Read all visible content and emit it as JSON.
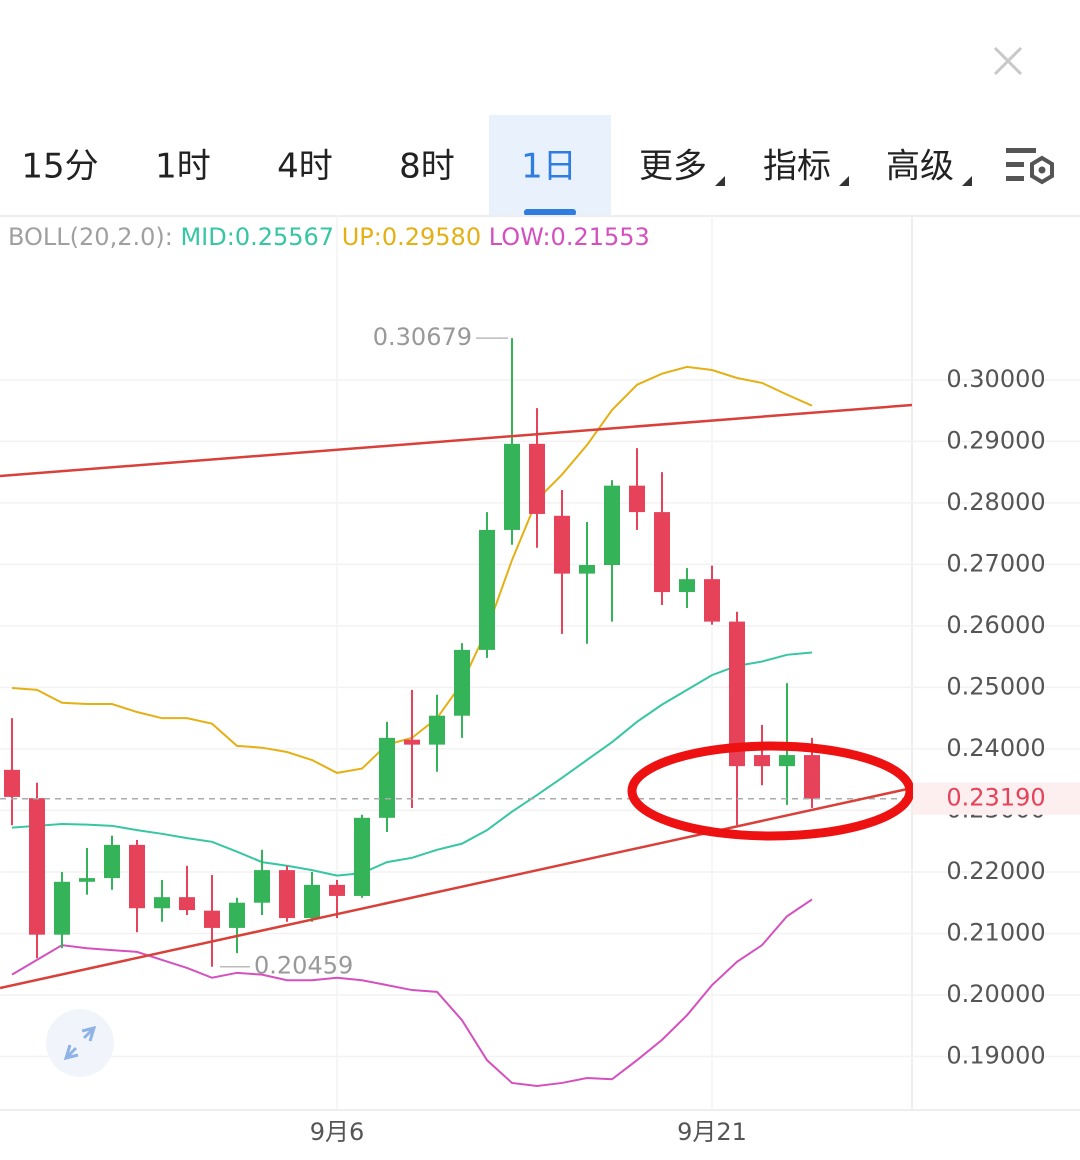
{
  "tabs": {
    "items": [
      "15分",
      "1时",
      "4时",
      "8时",
      "1日",
      "更多",
      "指标",
      "高级"
    ],
    "active": 4
  },
  "chart_data": {
    "type": "candlestick",
    "indicator_legend": {
      "title": "BOLL(20,2.0):",
      "items": [
        "MID:0.25567",
        "UP:0.29580",
        "LOW:0.21553"
      ],
      "colors": [
        "#36c6a4",
        "#e4b014",
        "#d550bf"
      ]
    },
    "categories": [
      null,
      null,
      null,
      null,
      null,
      null,
      null,
      null,
      null,
      null,
      null,
      null,
      null,
      "9月6",
      null,
      null,
      null,
      null,
      null,
      null,
      null,
      null,
      null,
      null,
      null,
      null,
      null,
      null,
      "9月21",
      null,
      null,
      null,
      null
    ],
    "open": [
      0.2366,
      0.232,
      0.2098,
      0.2184,
      0.219,
      0.2244,
      0.2141,
      0.2159,
      0.2137,
      0.2109,
      0.215,
      0.2203,
      0.2125,
      0.2179,
      0.2161,
      0.2288,
      0.2415,
      0.2407,
      0.2454,
      0.2561,
      0.2756,
      0.2896,
      0.2779,
      0.2685,
      0.2699,
      0.2828,
      0.2785,
      0.2655,
      0.2676,
      0.2607,
      0.239,
      0.2372,
      0.239
    ],
    "high": [
      0.245,
      0.2345,
      0.22,
      0.2239,
      0.2259,
      0.2252,
      0.2187,
      0.221,
      0.2195,
      0.2158,
      0.2236,
      0.221,
      0.22,
      0.2187,
      0.2293,
      0.2444,
      0.2496,
      0.2488,
      0.2572,
      0.2785,
      0.30679,
      0.2954,
      0.2821,
      0.2769,
      0.2837,
      0.2889,
      0.285,
      0.2694,
      0.2698,
      0.2623,
      0.2439,
      0.2507,
      0.2418
    ],
    "low": [
      0.2276,
      0.206,
      0.2076,
      0.2163,
      0.2171,
      0.2102,
      0.2119,
      0.213,
      0.20459,
      0.2068,
      0.213,
      0.2119,
      0.2119,
      0.2125,
      0.2158,
      0.2265,
      0.2304,
      0.2363,
      0.2418,
      0.2548,
      0.2732,
      0.2727,
      0.2587,
      0.2571,
      0.2607,
      0.2756,
      0.2634,
      0.2629,
      0.2602,
      0.2276,
      0.2341,
      0.2309,
      0.2304
    ],
    "close": [
      0.2322,
      0.2098,
      0.2184,
      0.219,
      0.2244,
      0.2141,
      0.2159,
      0.2138,
      0.2109,
      0.215,
      0.2203,
      0.2125,
      0.2179,
      0.2161,
      0.2288,
      0.2418,
      0.2407,
      0.2454,
      0.2561,
      0.2756,
      0.2896,
      0.2782,
      0.2685,
      0.2699,
      0.2828,
      0.2785,
      0.2655,
      0.2676,
      0.2607,
      0.2372,
      0.2372,
      0.239,
      0.2319
    ],
    "up_color": "#35b359",
    "down_color": "#e6435b",
    "overlays": [
      {
        "color": "#36c6a4",
        "values": [
          0.2272,
          0.2275,
          0.2278,
          0.2277,
          0.2275,
          0.2268,
          0.2262,
          0.2255,
          0.2249,
          0.2233,
          0.2216,
          0.221,
          0.2203,
          0.2194,
          0.2198,
          0.2216,
          0.2223,
          0.2236,
          0.2246,
          0.2268,
          0.2298,
          0.2325,
          0.2353,
          0.2382,
          0.2411,
          0.2444,
          0.2472,
          0.2496,
          0.252,
          0.2535,
          0.2542,
          0.2553,
          0.25567
        ]
      },
      {
        "color": "#e4b014",
        "values": [
          0.2499,
          0.2496,
          0.2475,
          0.2473,
          0.2473,
          0.246,
          0.245,
          0.245,
          0.2441,
          0.2405,
          0.2402,
          0.2395,
          0.2382,
          0.2361,
          0.2368,
          0.2407,
          0.2418,
          0.245,
          0.2507,
          0.2594,
          0.2707,
          0.2805,
          0.2846,
          0.2894,
          0.2951,
          0.2992,
          0.301,
          0.3021,
          0.3016,
          0.3003,
          0.2995,
          0.2976,
          0.2958
        ]
      },
      {
        "color": "#d550bf",
        "values": [
          0.2033,
          0.2057,
          0.2081,
          0.2076,
          0.2073,
          0.207,
          0.2057,
          0.2044,
          0.2028,
          0.2036,
          0.2033,
          0.2024,
          0.2024,
          0.2028,
          0.2024,
          0.2016,
          0.2008,
          0.2005,
          0.1959,
          0.1894,
          0.1857,
          0.1852,
          0.1857,
          0.1865,
          0.1863,
          0.1894,
          0.1927,
          0.1967,
          0.2016,
          0.2054,
          0.2081,
          0.2128,
          0.21553
        ]
      }
    ],
    "max_label": {
      "index": 20,
      "value": 0.30679
    },
    "min_label": {
      "index": 8,
      "value": 0.20459
    },
    "last_price": {
      "value": 0.2319,
      "label": "0.23190"
    },
    "ylim": [
      0.1813,
      0.3268
    ],
    "yticks": [
      {
        "value": 0.3,
        "label": "0.30000"
      },
      {
        "value": 0.29,
        "label": "0.29000"
      },
      {
        "value": 0.28,
        "label": "0.28000"
      },
      {
        "value": 0.27,
        "label": "0.27000"
      },
      {
        "value": 0.26,
        "label": "0.26000"
      },
      {
        "value": 0.25,
        "label": "0.25000"
      },
      {
        "value": 0.24,
        "label": "0.24000"
      },
      {
        "value": 0.23,
        "label": "0.23000"
      },
      {
        "value": 0.22,
        "label": "0.22000"
      },
      {
        "value": 0.21,
        "label": "0.21000"
      },
      {
        "value": 0.2,
        "label": "0.20000"
      },
      {
        "value": 0.19,
        "label": "0.19000"
      }
    ],
    "grid": true
  }
}
